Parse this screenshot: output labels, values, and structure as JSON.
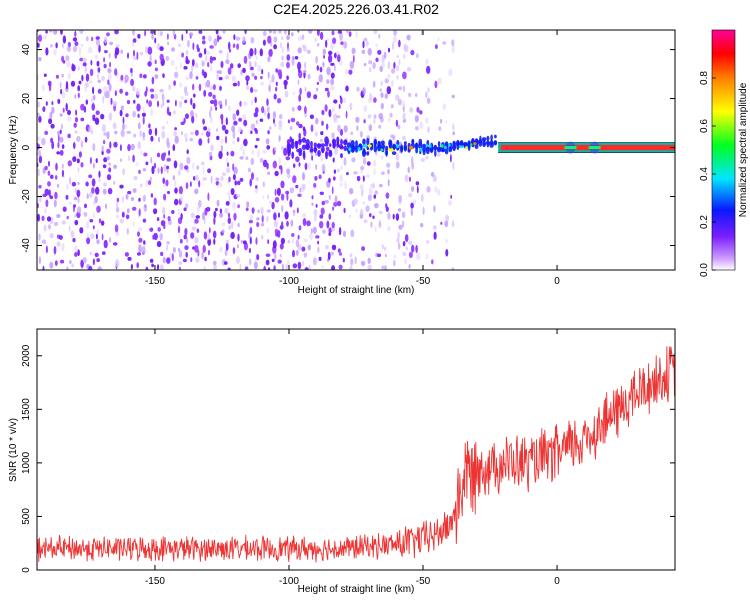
{
  "title": "C2E4.2025.226.03.41.R02",
  "chart_data": [
    {
      "type": "heatmap",
      "xlabel": "Height of straight line (km)",
      "ylabel": "Frequency (Hz)",
      "xlim": [
        -194,
        44
      ],
      "ylim": [
        -50,
        48
      ],
      "xticks": [
        -150,
        -100,
        -50,
        0
      ],
      "yticks": [
        -40,
        -20,
        0,
        20,
        40
      ],
      "colorbar": {
        "label": "Normalized spectral amplitude",
        "range": [
          0,
          1
        ],
        "ticks": [
          "0.0",
          "0.2",
          "0.4",
          "0.6",
          "0.8"
        ],
        "colormap": "rainbow (purple → blue → cyan → green → yellow → red → magenta)"
      },
      "features": {
        "background_noise_x_range": [
          -194,
          -38
        ],
        "signal_band_center_hz": 0,
        "signal_band_half_width_hz": 2,
        "strong_signal_x_range": [
          -22,
          44
        ]
      }
    },
    {
      "type": "line",
      "xlabel": "Height of straight line (km)",
      "ylabel": "SNR (10 * v/v)",
      "xlim": [
        -194,
        44
      ],
      "ylim": [
        0,
        2250
      ],
      "xticks": [
        -150,
        -100,
        -50,
        0
      ],
      "yticks": [
        0,
        500,
        1000,
        1500,
        2000
      ],
      "line_color": "#ee3333",
      "x": [
        -194,
        -150,
        -100,
        -80,
        -60,
        -50,
        -45,
        -40,
        -37,
        -35,
        -30,
        -20,
        -10,
        0,
        10,
        20,
        30,
        44
      ],
      "y": [
        200,
        200,
        200,
        200,
        240,
        290,
        330,
        420,
        620,
        850,
        950,
        1000,
        1000,
        1080,
        1220,
        1430,
        1650,
        1870
      ]
    }
  ]
}
